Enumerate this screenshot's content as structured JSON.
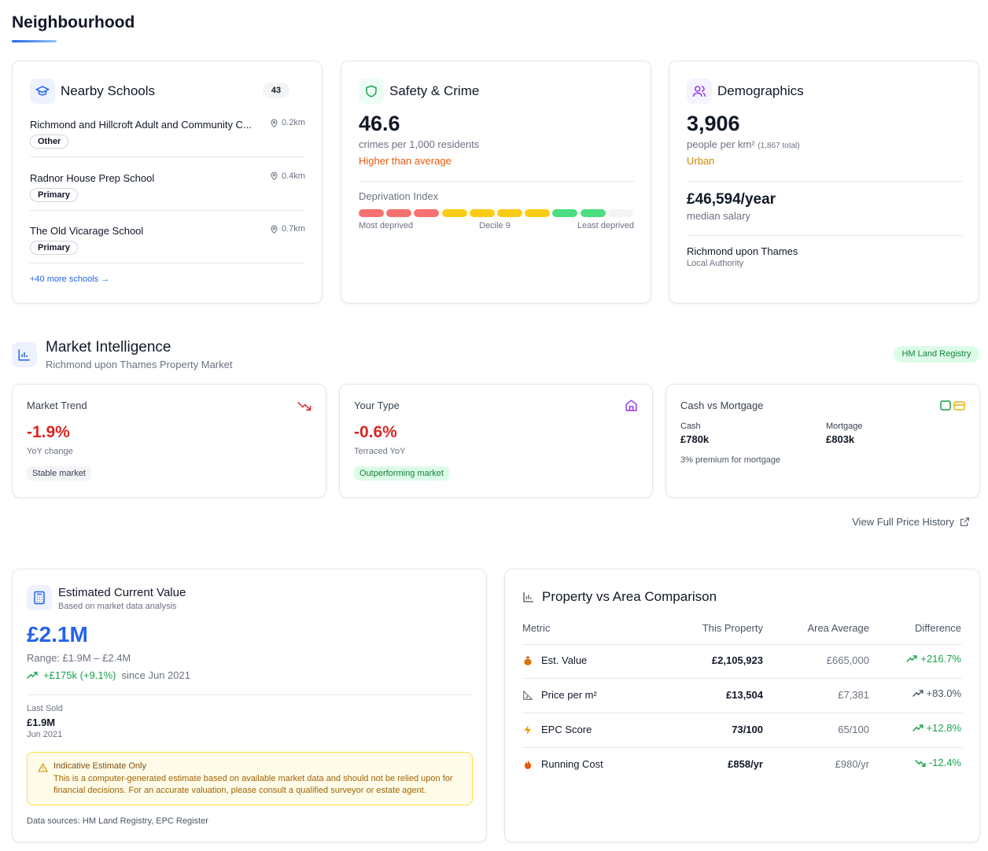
{
  "neighbourhood": {
    "title": "Neighbourhood",
    "schools": {
      "title": "Nearby Schools",
      "count": 43,
      "items": [
        {
          "name": "Richmond and Hillcroft Adult and Community C...",
          "distance": "0.2km",
          "type": "Other"
        },
        {
          "name": "Radnor House Prep School",
          "distance": "0.4km",
          "type": "Primary"
        },
        {
          "name": "The Old Vicarage School",
          "distance": "0.7km",
          "type": "Primary"
        }
      ],
      "more": "+40 more schools →"
    },
    "safety": {
      "title": "Safety & Crime",
      "value": "46.6",
      "unit": "crimes per 1,000 residents",
      "comparison": "Higher than average",
      "deprivation": {
        "label": "Deprivation Index",
        "decile": 9,
        "min_label": "Most deprived",
        "decile_label": "Decile 9",
        "max_label": "Least deprived"
      }
    },
    "demographics": {
      "title": "Demographics",
      "density": "3,906",
      "density_unit": "people per km²",
      "total": "(1,867 total)",
      "area_type": "Urban",
      "salary": "£46,594/year",
      "salary_label": "median salary",
      "authority": "Richmond upon Thames",
      "authority_label": "Local Authority"
    }
  },
  "market": {
    "title": "Market Intelligence",
    "subtitle": "Richmond upon Thames Property Market",
    "source": "HM Land Registry",
    "trend": {
      "title": "Market Trend",
      "value": "-1.9%",
      "label": "YoY change",
      "badge": "Stable market"
    },
    "type": {
      "title": "Your Type",
      "value": "-0.6%",
      "label": "Terraced YoY",
      "badge": "Outperforming market"
    },
    "cash": {
      "title": "Cash vs Mortgage",
      "cash_label": "Cash",
      "cash_value": "£780k",
      "mortgage_label": "Mortgage",
      "mortgage_value": "£803k",
      "note": "3% premium for mortgage"
    },
    "history_link": "View Full Price History"
  },
  "valuation": {
    "title": "Estimated Current Value",
    "subtitle": "Based on market data analysis",
    "value": "£2.1M",
    "range": "Range: £1.9M – £2.4M",
    "change": "+£175k (+9.1%)",
    "since": "since Jun 2021",
    "last_sold_label": "Last Sold",
    "last_sold_value": "£1.9M",
    "last_sold_date": "Jun 2021",
    "warning": {
      "title": "Indicative Estimate Only",
      "text": "This is a computer-generated estimate based on available market data and should not be relied upon for financial decisions. For an accurate valuation, please consult a qualified surveyor or estate agent."
    },
    "sources": "Data sources: HM Land Registry, EPC Register"
  },
  "comparison": {
    "title": "Property vs Area Comparison",
    "columns": [
      "Metric",
      "This Property",
      "Area Average",
      "Difference"
    ],
    "rows": [
      [
        "Est. Value",
        "£2,105,923",
        "£665,000",
        "+216.7%"
      ],
      [
        "Price per m²",
        "£13,504",
        "£7,381",
        "+83.0%"
      ],
      [
        "EPC Score",
        "73/100",
        "65/100",
        "+12.8%"
      ],
      [
        "Running Cost",
        "£858/yr",
        "£980/yr",
        "-12.4%"
      ]
    ]
  }
}
